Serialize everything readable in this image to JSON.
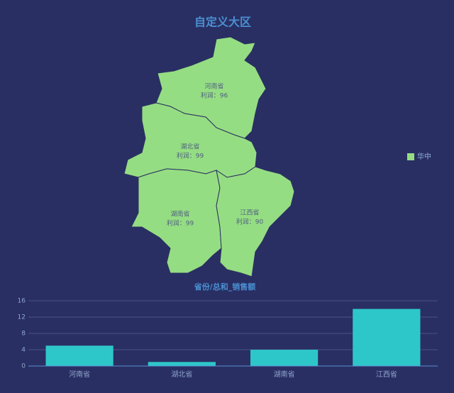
{
  "chart_data": [
    {
      "type": "map",
      "title": "自定义大区",
      "legend": [
        {
          "name": "华中",
          "color": "#95dd83"
        }
      ],
      "regions": [
        "河南省",
        "湖北省",
        "湖南省",
        "江西省"
      ],
      "values": [
        96,
        99,
        99,
        90
      ],
      "value_labels": [
        "利润：96",
        "利润：99",
        "利润：99",
        "利润：90"
      ]
    },
    {
      "type": "bar",
      "title": "省份/总和_销售额",
      "categories": [
        "河南省",
        "湖北省",
        "湖南省",
        "江西省"
      ],
      "values": [
        5,
        1,
        4,
        14
      ],
      "color": "#2ec7c9",
      "ylim": [
        0,
        16
      ],
      "yticks": [
        0,
        4,
        8,
        12,
        16
      ],
      "grid": true
    }
  ]
}
